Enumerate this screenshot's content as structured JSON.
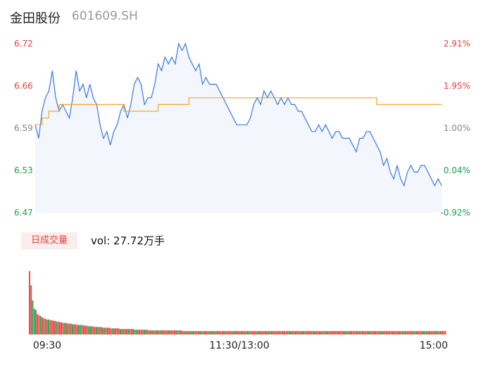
{
  "header": {
    "name": "金田股份",
    "code": "601609.SH"
  },
  "volume_panel": {
    "tag_label": "日成交量",
    "vol_label": "vol: 27.72万手"
  },
  "colors": {
    "price_line": "#3a78e0",
    "avg_line": "#f5a623",
    "up": "#e8413c",
    "down": "#1aa34a",
    "neutral": "#888888"
  },
  "chart_data": [
    {
      "type": "line",
      "title": "",
      "y_labels_left": [
        "6.72",
        "6.66",
        "6.59",
        "6.53",
        "6.47"
      ],
      "y_labels_right": [
        "2.91%",
        "1.95%",
        "1.00%",
        "0.04%",
        "-0.92%"
      ],
      "ylim": [
        6.47,
        6.72
      ],
      "xlim": [
        0,
        240
      ],
      "series": [
        {
          "key": "price",
          "values": [
            [
              0,
              6.6
            ],
            [
              2,
              6.58
            ],
            [
              4,
              6.62
            ],
            [
              6,
              6.64
            ],
            [
              8,
              6.65
            ],
            [
              10,
              6.68
            ],
            [
              12,
              6.64
            ],
            [
              14,
              6.62
            ],
            [
              16,
              6.63
            ],
            [
              18,
              6.62
            ],
            [
              20,
              6.61
            ],
            [
              22,
              6.64
            ],
            [
              24,
              6.68
            ],
            [
              26,
              6.65
            ],
            [
              28,
              6.66
            ],
            [
              30,
              6.64
            ],
            [
              32,
              6.66
            ],
            [
              34,
              6.64
            ],
            [
              36,
              6.63
            ],
            [
              38,
              6.6
            ],
            [
              40,
              6.58
            ],
            [
              42,
              6.59
            ],
            [
              44,
              6.57
            ],
            [
              46,
              6.59
            ],
            [
              48,
              6.6
            ],
            [
              50,
              6.62
            ],
            [
              52,
              6.63
            ],
            [
              54,
              6.61
            ],
            [
              56,
              6.63
            ],
            [
              58,
              6.66
            ],
            [
              60,
              6.67
            ],
            [
              62,
              6.66
            ],
            [
              64,
              6.63
            ],
            [
              66,
              6.64
            ],
            [
              68,
              6.64
            ],
            [
              70,
              6.66
            ],
            [
              72,
              6.69
            ],
            [
              74,
              6.68
            ],
            [
              76,
              6.7
            ],
            [
              78,
              6.69
            ],
            [
              80,
              6.7
            ],
            [
              82,
              6.69
            ],
            [
              84,
              6.72
            ],
            [
              86,
              6.71
            ],
            [
              88,
              6.72
            ],
            [
              90,
              6.7
            ],
            [
              92,
              6.69
            ],
            [
              94,
              6.68
            ],
            [
              96,
              6.69
            ],
            [
              98,
              6.66
            ],
            [
              100,
              6.67
            ],
            [
              102,
              6.66
            ],
            [
              104,
              6.66
            ],
            [
              106,
              6.66
            ],
            [
              108,
              6.65
            ],
            [
              110,
              6.64
            ],
            [
              112,
              6.63
            ],
            [
              114,
              6.62
            ],
            [
              116,
              6.61
            ],
            [
              118,
              6.6
            ],
            [
              120,
              6.6
            ],
            [
              122,
              6.6
            ],
            [
              124,
              6.6
            ],
            [
              126,
              6.61
            ],
            [
              128,
              6.63
            ],
            [
              130,
              6.64
            ],
            [
              132,
              6.63
            ],
            [
              134,
              6.65
            ],
            [
              136,
              6.64
            ],
            [
              138,
              6.65
            ],
            [
              140,
              6.64
            ],
            [
              142,
              6.63
            ],
            [
              144,
              6.64
            ],
            [
              146,
              6.63
            ],
            [
              148,
              6.64
            ],
            [
              150,
              6.63
            ],
            [
              152,
              6.63
            ],
            [
              154,
              6.62
            ],
            [
              156,
              6.62
            ],
            [
              158,
              6.61
            ],
            [
              160,
              6.6
            ],
            [
              162,
              6.59
            ],
            [
              164,
              6.59
            ],
            [
              166,
              6.6
            ],
            [
              168,
              6.59
            ],
            [
              170,
              6.6
            ],
            [
              172,
              6.59
            ],
            [
              174,
              6.58
            ],
            [
              176,
              6.59
            ],
            [
              178,
              6.59
            ],
            [
              180,
              6.58
            ],
            [
              182,
              6.58
            ],
            [
              184,
              6.58
            ],
            [
              186,
              6.57
            ],
            [
              188,
              6.56
            ],
            [
              190,
              6.58
            ],
            [
              192,
              6.58
            ],
            [
              194,
              6.59
            ],
            [
              196,
              6.59
            ],
            [
              198,
              6.58
            ],
            [
              200,
              6.57
            ],
            [
              202,
              6.56
            ],
            [
              204,
              6.54
            ],
            [
              206,
              6.55
            ],
            [
              208,
              6.53
            ],
            [
              210,
              6.52
            ],
            [
              212,
              6.54
            ],
            [
              214,
              6.52
            ],
            [
              216,
              6.51
            ],
            [
              218,
              6.53
            ],
            [
              220,
              6.54
            ],
            [
              222,
              6.53
            ],
            [
              224,
              6.53
            ],
            [
              226,
              6.54
            ],
            [
              228,
              6.54
            ],
            [
              230,
              6.53
            ],
            [
              232,
              6.52
            ],
            [
              234,
              6.51
            ],
            [
              236,
              6.52
            ],
            [
              238,
              6.51
            ]
          ]
        },
        {
          "key": "average",
          "values": [
            [
              0,
              6.6
            ],
            [
              4,
              6.61
            ],
            [
              8,
              6.62
            ],
            [
              14,
              6.63
            ],
            [
              28,
              6.63
            ],
            [
              40,
              6.63
            ],
            [
              52,
              6.62
            ],
            [
              60,
              6.62
            ],
            [
              72,
              6.63
            ],
            [
              90,
              6.64
            ],
            [
              110,
              6.64
            ],
            [
              140,
              6.64
            ],
            [
              170,
              6.64
            ],
            [
              200,
              6.63
            ],
            [
              238,
              6.63
            ]
          ]
        }
      ]
    },
    {
      "type": "bar",
      "title": "",
      "x_tick_labels": [
        "09:30",
        "11:30/13:00",
        "15:00"
      ],
      "series": [
        {
          "key": "volume",
          "values": [
            93,
            72,
            50,
            38,
            36,
            30,
            28,
            27,
            25,
            24,
            23,
            22,
            22,
            21,
            21,
            20,
            20,
            19,
            19,
            18,
            18,
            17,
            17,
            17,
            16,
            16,
            16,
            15,
            15,
            15,
            14,
            14,
            14,
            14,
            13,
            13,
            13,
            12,
            12,
            12,
            12,
            11,
            11,
            11,
            11,
            11,
            10,
            10,
            10,
            10,
            10,
            9,
            9,
            9,
            9,
            9,
            9,
            8,
            8,
            8,
            8,
            8,
            8,
            8,
            8,
            8,
            7,
            7,
            7,
            7,
            7,
            7,
            7,
            7,
            7,
            6,
            6,
            6,
            6,
            6,
            6,
            6,
            6,
            6,
            6,
            6,
            6,
            6,
            6,
            6,
            6,
            6,
            6,
            6,
            6,
            6,
            5,
            5,
            5,
            5,
            5,
            5,
            5,
            5,
            5,
            5,
            5,
            5,
            5,
            5,
            5,
            5,
            5,
            5,
            5,
            5,
            5,
            5,
            5,
            5,
            5,
            5,
            5,
            5,
            5,
            5,
            5,
            5,
            5,
            5,
            5,
            5,
            5,
            5,
            5,
            5,
            5,
            5,
            5,
            5,
            5,
            5,
            5,
            5,
            5,
            5,
            5,
            5,
            5,
            5,
            5,
            5,
            5,
            5,
            5,
            5,
            5,
            5,
            5,
            5,
            5,
            5,
            5,
            5,
            5,
            5,
            5,
            5,
            5,
            5,
            5,
            5,
            5,
            5,
            5,
            5,
            5,
            5,
            5,
            5,
            5,
            5,
            5,
            5,
            5,
            5,
            5,
            5,
            5,
            5,
            5,
            5,
            5,
            5,
            5,
            5,
            5,
            5,
            5,
            5,
            5,
            5,
            5,
            5,
            5,
            5,
            5,
            5,
            5,
            5,
            5,
            5,
            5,
            5,
            5,
            5,
            5,
            5,
            5,
            5,
            5,
            5,
            5,
            5,
            5,
            5,
            5,
            5,
            5,
            5,
            5,
            5,
            5,
            5,
            5,
            5,
            5,
            5,
            5,
            5,
            5,
            5,
            5,
            5,
            5,
            5,
            5,
            5,
            5,
            5,
            5,
            5,
            5,
            5,
            5,
            5,
            5,
            5,
            5,
            5,
            5,
            5
          ]
        }
      ]
    }
  ]
}
